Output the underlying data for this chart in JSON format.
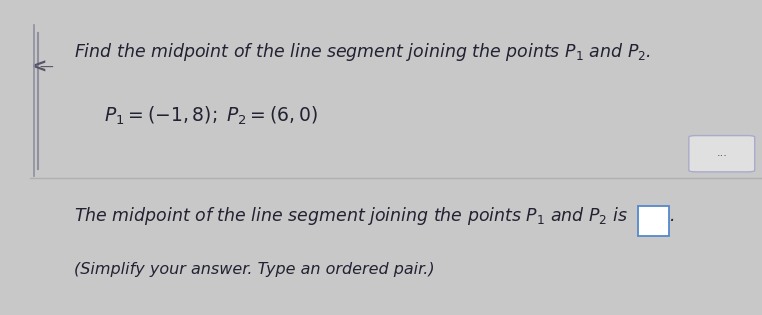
{
  "bg_color_top": "#4a90d9",
  "bg_color_main": "#c8c8c8",
  "panel_top_color": "#f0f0f0",
  "panel_bottom_color": "#e8e8e8",
  "left_bar_color": "#9090a0",
  "divider_color": "#b0b0b0",
  "text_color": "#222233",
  "dots_box_bg": "#e0e0e0",
  "dots_box_edge": "#aaaacc",
  "answer_box_edge": "#5588cc",
  "answer_box_bg": "#ffffff",
  "line1": "Find the midpoint of the line segment joining the points $P_1$ and $P_2$.",
  "line2": "$P_1=(-1, 8);\\; P_2=(6, 0)$",
  "line3": "The midpoint of the line segment joining the points $P_1$ and $P_2$ is",
  "line4": "(Simplify your answer. Type an ordered pair.)",
  "font_size_main": 12.5,
  "font_size_points": 13.5
}
